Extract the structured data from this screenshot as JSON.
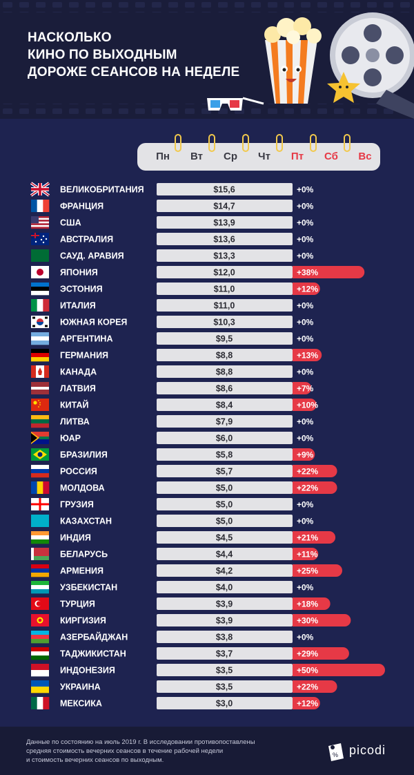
{
  "title_lines": [
    "НАСКОЛЬКО",
    "КИНО ПО ВЫХОДНЫМ",
    "ДОРОЖЕ СЕАНСОВ НА НЕДЕЛЕ"
  ],
  "calendar_days": [
    {
      "label": "Пн",
      "weekend": false
    },
    {
      "label": "Вт",
      "weekend": false
    },
    {
      "label": "Ср",
      "weekend": false
    },
    {
      "label": "Чт",
      "weekend": false
    },
    {
      "label": "Пт",
      "weekend": true
    },
    {
      "label": "Сб",
      "weekend": true
    },
    {
      "label": "Вс",
      "weekend": true
    }
  ],
  "colors": {
    "background": "#1e2350",
    "bar": "#e3e3e6",
    "increase": "#e63946",
    "text": "#ffffff"
  },
  "chart_data": {
    "type": "bar",
    "categories": [
      "ВЕЛИКОБРИТАНИЯ",
      "ФРАНЦИЯ",
      "США",
      "АВСТРАЛИЯ",
      "САУД. АРАВИЯ",
      "ЯПОНИЯ",
      "ЭСТОНИЯ",
      "ИТАЛИЯ",
      "ЮЖНАЯ КОРЕЯ",
      "АРГЕНТИНА",
      "ГЕРМАНИЯ",
      "КАНАДА",
      "ЛАТВИЯ",
      "КИТАЙ",
      "ЛИТВА",
      "ЮАР",
      "БРАЗИЛИЯ",
      "РОССИЯ",
      "МОЛДОВА",
      "ГРУЗИЯ",
      "КАЗАХСТАН",
      "ИНДИЯ",
      "БЕЛАРУСЬ",
      "АРМЕНИЯ",
      "УЗБЕКИСТАН",
      "ТУРЦИЯ",
      "КИРГИЗИЯ",
      "АЗЕРБАЙДЖАН",
      "ТАДЖИКИСТАН",
      "ИНДОНЕЗИЯ",
      "УКРАИНА",
      "МЕКСИКА"
    ],
    "series": [
      {
        "values_label": [
          "$15,6",
          "$14,7",
          "$13,9",
          "$13,6",
          "$13,3",
          "$12,0",
          "$11,0",
          "$11,0",
          "$10,3",
          "$9,5",
          "$8,8",
          "$8,8",
          "$8,6",
          "$8,4",
          "$7,9",
          "$6,0",
          "$5,8",
          "$5,7",
          "$5,0",
          "$5,0",
          "$5,0",
          "$4,5",
          "$4,4",
          "$4,2",
          "$4,0",
          "$3,9",
          "$3,9",
          "$3,8",
          "$3,7",
          "$3,5",
          "$3,5",
          "$3,0"
        ],
        "values": [
          15.6,
          14.7,
          13.9,
          13.6,
          13.3,
          12.0,
          11.0,
          11.0,
          10.3,
          9.5,
          8.8,
          8.8,
          8.6,
          8.4,
          7.9,
          6.0,
          5.8,
          5.7,
          5.0,
          5.0,
          5.0,
          4.5,
          4.4,
          4.2,
          4.0,
          3.9,
          3.9,
          3.8,
          3.7,
          3.5,
          3.5,
          3.0
        ]
      },
      {
        "values_label": [
          "+0%",
          "+0%",
          "+0%",
          "+0%",
          "+0%",
          "+38%",
          "+12%",
          "+0%",
          "+0%",
          "+0%",
          "+13%",
          "+0%",
          "+7%",
          "+10%",
          "+0%",
          "+0%",
          "+9%",
          "+22%",
          "+22%",
          "+0%",
          "+0%",
          "+21%",
          "+11%",
          "+25%",
          "+0%",
          "+18%",
          "+30%",
          "+0%",
          "+29%",
          "+50%",
          "+22%",
          "+12%"
        ],
        "values": [
          0,
          0,
          0,
          0,
          0,
          38,
          12,
          0,
          0,
          0,
          13,
          0,
          7,
          10,
          0,
          0,
          9,
          22,
          22,
          0,
          0,
          21,
          11,
          25,
          0,
          18,
          30,
          0,
          29,
          50,
          22,
          12
        ]
      }
    ],
    "flags": [
      {
        "type": "uk"
      },
      {
        "type": "v",
        "colors": [
          "#0055a4",
          "#ffffff",
          "#ef4135"
        ]
      },
      {
        "type": "us"
      },
      {
        "type": "au"
      },
      {
        "type": "solid",
        "colors": [
          "#006c35"
        ]
      },
      {
        "type": "jp"
      },
      {
        "type": "h",
        "colors": [
          "#0072ce",
          "#000000",
          "#ffffff"
        ]
      },
      {
        "type": "v",
        "colors": [
          "#009246",
          "#ffffff",
          "#ce2b37"
        ]
      },
      {
        "type": "kr"
      },
      {
        "type": "h",
        "colors": [
          "#74acdf",
          "#ffffff",
          "#74acdf"
        ]
      },
      {
        "type": "h",
        "colors": [
          "#000000",
          "#dd0000",
          "#ffce00"
        ]
      },
      {
        "type": "ca"
      },
      {
        "type": "h3",
        "colors": [
          "#9e3039",
          "#ffffff",
          "#9e3039"
        ]
      },
      {
        "type": "cn"
      },
      {
        "type": "h",
        "colors": [
          "#fdb913",
          "#006a44",
          "#c1272d"
        ]
      },
      {
        "type": "za"
      },
      {
        "type": "br"
      },
      {
        "type": "h",
        "colors": [
          "#ffffff",
          "#0039a6",
          "#d52b1e"
        ]
      },
      {
        "type": "v",
        "colors": [
          "#0046ae",
          "#ffd200",
          "#cc092f"
        ]
      },
      {
        "type": "ge"
      },
      {
        "type": "solid",
        "colors": [
          "#00afca"
        ]
      },
      {
        "type": "h",
        "colors": [
          "#ff9933",
          "#ffffff",
          "#138808"
        ]
      },
      {
        "type": "by"
      },
      {
        "type": "h",
        "colors": [
          "#d90012",
          "#0033a0",
          "#f2a800"
        ]
      },
      {
        "type": "h",
        "colors": [
          "#1eb53a",
          "#ffffff",
          "#0099b5"
        ]
      },
      {
        "type": "tr"
      },
      {
        "type": "kg"
      },
      {
        "type": "h",
        "colors": [
          "#00b5e2",
          "#ef3340",
          "#509e2f"
        ]
      },
      {
        "type": "h",
        "colors": [
          "#cc0000",
          "#ffffff",
          "#006600"
        ]
      },
      {
        "type": "h2",
        "colors": [
          "#ce1126",
          "#ffffff"
        ]
      },
      {
        "type": "h2",
        "colors": [
          "#0057b7",
          "#ffd700"
        ]
      },
      {
        "type": "v",
        "colors": [
          "#006847",
          "#ffffff",
          "#ce1126"
        ]
      }
    ]
  },
  "footnote_lines": [
    "Данные по состоянию на июль 2019 г. В исследовании противопоставлены",
    "средняя стоимость вечерних сеансов в течение рабочей недели",
    "и стоимость вечерних сеансов по выходным."
  ],
  "logo": {
    "text": "picodi",
    "icon": "picodi-logo-icon"
  }
}
